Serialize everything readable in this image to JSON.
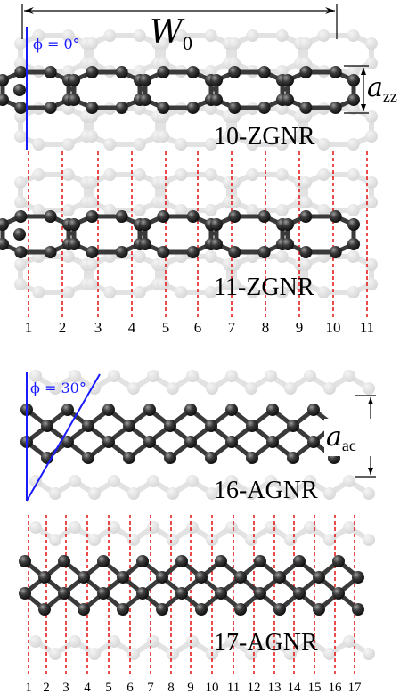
{
  "colors": {
    "atom": "#2e2e2e",
    "atom_highlight": "#8a8a8a",
    "bond": "#3a3a3a",
    "faded": "#e2e2e2",
    "cutline": "#e00000",
    "angle": "#1a1aff",
    "text": "#000000"
  },
  "labels": {
    "w0_symbol": "W",
    "w0_sub": "0",
    "azz_symbol": "a",
    "azz_sub": "zz",
    "aac_symbol": "a",
    "aac_sub": "ac",
    "phi0": "ϕ = 0°",
    "phi30": "ϕ = 30°"
  },
  "panels": [
    {
      "name": "10-ZGNR",
      "type": "zigzag",
      "rings": 5
    },
    {
      "name": "11-ZGNR",
      "type": "zigzag",
      "rings": 5,
      "cut_indices": [
        "1",
        "2",
        "3",
        "4",
        "5",
        "6",
        "7",
        "8",
        "9",
        "10",
        "11"
      ]
    },
    {
      "name": "16-AGNR",
      "type": "armchair",
      "columns": 8
    },
    {
      "name": "17-AGNR",
      "type": "armchair",
      "columns": 9,
      "cut_indices": [
        "1",
        "2",
        "3",
        "4",
        "5",
        "6",
        "7",
        "8",
        "9",
        "10",
        "11",
        "12",
        "13",
        "14",
        "15",
        "16",
        "17"
      ]
    }
  ]
}
